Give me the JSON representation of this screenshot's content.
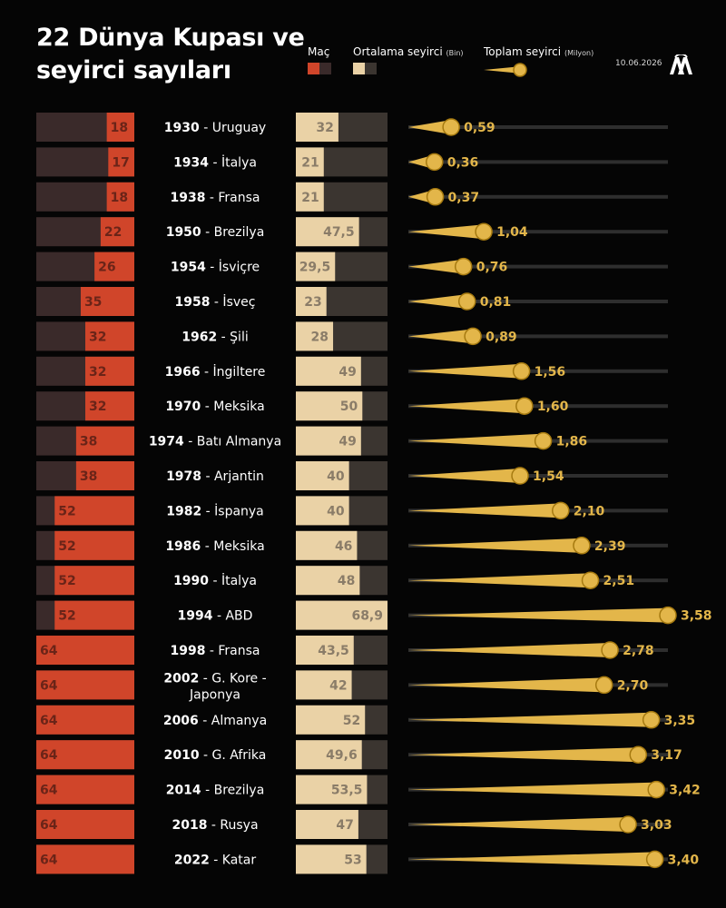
{
  "header": {
    "title_line1": "22 Dünya Kupası ve",
    "title_line2": "seyirci sayıları",
    "date": "10.06.2026",
    "logo_icon": "aa-logo-icon"
  },
  "legend": {
    "mac_label": "Maç",
    "avg_label": "Ortalama seyirci",
    "avg_unit": "(Bin)",
    "total_label": "Toplam seyirci",
    "total_unit": "(Milyon)"
  },
  "colors": {
    "background": "#050505",
    "mac_bar": "#d0452a",
    "mac_track": "#3a2a2a",
    "avg_bar": "#ead2a6",
    "avg_track": "#3b3530",
    "total_gold": "#e3b64a",
    "total_track": "#2e2e2e"
  },
  "chart_data": {
    "type": "bar",
    "categories": [
      {
        "year": "1930",
        "host": "Uruguay"
      },
      {
        "year": "1934",
        "host": "İtalya"
      },
      {
        "year": "1938",
        "host": "Fransa"
      },
      {
        "year": "1950",
        "host": "Brezilya"
      },
      {
        "year": "1954",
        "host": "İsviçre"
      },
      {
        "year": "1958",
        "host": "İsveç"
      },
      {
        "year": "1962",
        "host": "Şili"
      },
      {
        "year": "1966",
        "host": "İngiltere"
      },
      {
        "year": "1970",
        "host": "Meksika"
      },
      {
        "year": "1974",
        "host": "Batı Almanya"
      },
      {
        "year": "1978",
        "host": "Arjantin"
      },
      {
        "year": "1982",
        "host": "İspanya"
      },
      {
        "year": "1986",
        "host": "Meksika"
      },
      {
        "year": "1990",
        "host": "İtalya"
      },
      {
        "year": "1994",
        "host": "ABD"
      },
      {
        "year": "1998",
        "host": "Fransa"
      },
      {
        "year": "2002",
        "host": "G. Kore -",
        "host2": "Japonya"
      },
      {
        "year": "2006",
        "host": "Almanya"
      },
      {
        "year": "2010",
        "host": "G. Afrika"
      },
      {
        "year": "2014",
        "host": "Brezilya"
      },
      {
        "year": "2018",
        "host": "Rusya"
      },
      {
        "year": "2022",
        "host": "Katar"
      }
    ],
    "series": [
      {
        "name": "Maç",
        "values": [
          18,
          17,
          18,
          22,
          26,
          35,
          32,
          32,
          32,
          38,
          38,
          52,
          52,
          52,
          52,
          64,
          64,
          64,
          64,
          64,
          64,
          64
        ],
        "labels": [
          "18",
          "17",
          "18",
          "22",
          "26",
          "35",
          "32",
          "32",
          "32",
          "38",
          "38",
          "52",
          "52",
          "52",
          "52",
          "64",
          "64",
          "64",
          "64",
          "64",
          "64",
          "64"
        ],
        "max": 64
      },
      {
        "name": "Ortalama seyirci (Bin)",
        "values": [
          32,
          21,
          21,
          47.5,
          29.5,
          23,
          28,
          49,
          50,
          49,
          40,
          40,
          46,
          48,
          68.9,
          43.5,
          42,
          52,
          49.6,
          53.5,
          47,
          53
        ],
        "labels": [
          "32",
          "21",
          "21",
          "47,5",
          "29,5",
          "23",
          "28",
          "49",
          "50",
          "49",
          "40",
          "40",
          "46",
          "48",
          "68,9",
          "43,5",
          "42",
          "52",
          "49,6",
          "53,5",
          "47",
          "53"
        ],
        "max": 68.9
      },
      {
        "name": "Toplam seyirci (Milyon)",
        "values": [
          0.59,
          0.36,
          0.37,
          1.04,
          0.76,
          0.81,
          0.89,
          1.56,
          1.6,
          1.86,
          1.54,
          2.1,
          2.39,
          2.51,
          3.58,
          2.78,
          2.7,
          3.35,
          3.17,
          3.42,
          3.03,
          3.4
        ],
        "labels": [
          "0,59",
          "0,36",
          "0,37",
          "1,04",
          "0,76",
          "0,81",
          "0,89",
          "1,56",
          "1,60",
          "1,86",
          "1,54",
          "2,10",
          "2,39",
          "2,51",
          "3,58",
          "2,78",
          "2,70",
          "3,35",
          "3,17",
          "3,42",
          "3,03",
          "3,40"
        ],
        "max": 3.58
      }
    ]
  }
}
